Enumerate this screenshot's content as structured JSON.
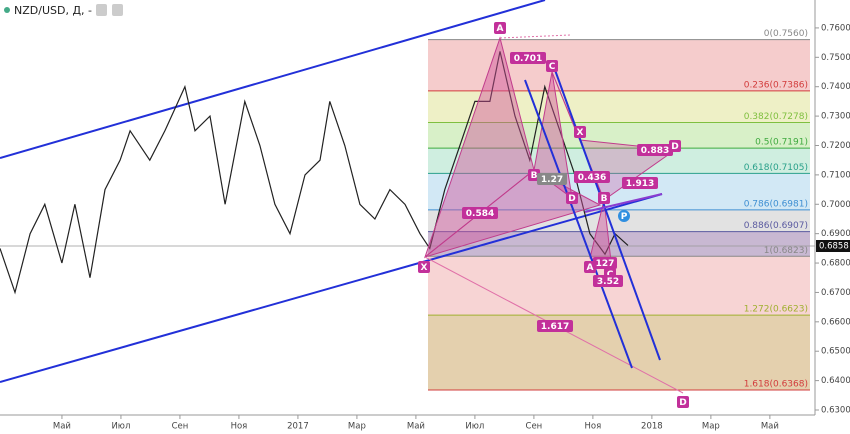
{
  "chart_data": {
    "type": "line",
    "title": "NZD/USD, Д, -",
    "series": [
      {
        "name": "NZD/USD",
        "color": "#222222",
        "x": [
          -2.1,
          -1.59,
          -1.08,
          -0.58,
          0,
          0.44,
          0.95,
          1.46,
          1.97,
          2.31,
          2.98,
          3.49,
          4.17,
          4.51,
          5.02,
          5.53,
          6.2,
          6.71,
          7.22,
          7.73,
          8.24,
          8.75,
          9.08,
          9.59,
          10.1,
          10.61,
          11.12,
          11.63,
          12.14,
          12.47,
          12.98,
          13.49,
          14,
          14.51,
          14.85,
          15.36,
          15.86,
          16.37,
          16.88,
          17.39,
          17.9,
          18.41,
          18.75,
          19.19
        ],
        "values": [
          0.685,
          0.67,
          0.69,
          0.7,
          0.68,
          0.7,
          0.675,
          0.705,
          0.715,
          0.725,
          0.715,
          0.725,
          0.74,
          0.725,
          0.73,
          0.7,
          0.735,
          0.72,
          0.7,
          0.69,
          0.71,
          0.715,
          0.735,
          0.72,
          0.7,
          0.695,
          0.705,
          0.7,
          0.69,
          0.685,
          0.705,
          0.72,
          0.735,
          0.735,
          0.752,
          0.73,
          0.715,
          0.74,
          0.725,
          0.71,
          0.69,
          0.683,
          0.69,
          0.686
        ]
      }
    ],
    "last_price": 0.6858,
    "last_price_label": "0.6858",
    "xlim": [
      -2.1,
      25.53
    ],
    "ylim": [
      0.6283,
      0.7695
    ],
    "yticks": [
      {
        "value": 0.76,
        "label": "0.7600"
      },
      {
        "value": 0.75,
        "label": "0.7500"
      },
      {
        "value": 0.74,
        "label": "0.7400"
      },
      {
        "value": 0.73,
        "label": "0.7300"
      },
      {
        "value": 0.72,
        "label": "0.7200"
      },
      {
        "value": 0.71,
        "label": "0.7100"
      },
      {
        "value": 0.7,
        "label": "0.7000"
      },
      {
        "value": 0.69,
        "label": "0.6900"
      },
      {
        "value": 0.68,
        "label": "0.6800"
      },
      {
        "value": 0.67,
        "label": "0.6700"
      },
      {
        "value": 0.66,
        "label": "0.6600"
      },
      {
        "value": 0.65,
        "label": "0.6500"
      },
      {
        "value": 0.64,
        "label": "0.6400"
      },
      {
        "value": 0.63,
        "label": "0.6300"
      }
    ],
    "xticks": [
      {
        "value": 0,
        "label": "Май"
      },
      {
        "value": 2,
        "label": "Июл"
      },
      {
        "value": 4,
        "label": "Сен"
      },
      {
        "value": 6,
        "label": "Ноя"
      },
      {
        "value": 8,
        "label": "2017"
      },
      {
        "value": 10,
        "label": "Мар"
      },
      {
        "value": 12,
        "label": "Май"
      },
      {
        "value": 14,
        "label": "Июл"
      },
      {
        "value": 16,
        "label": "Сен"
      },
      {
        "value": 18,
        "label": "Ноя"
      },
      {
        "value": 20,
        "label": "2018"
      },
      {
        "value": 22,
        "label": "Мар"
      },
      {
        "value": 24,
        "label": "Май"
      }
    ],
    "fib_levels": [
      {
        "label": "0(0.7560)",
        "price": 0.756,
        "color": "#888888",
        "fill": "#f5cccc"
      },
      {
        "label": "0.236(0.7386)",
        "price": 0.7386,
        "color": "#d23c3c",
        "fill": "#eef0c6"
      },
      {
        "label": "0.382(0.7278)",
        "price": 0.7278,
        "color": "#7fbf3f",
        "fill": "#d8f0c8"
      },
      {
        "label": "0.5(0.7191)",
        "price": 0.7191,
        "color": "#3faa3f",
        "fill": "#cfeee0"
      },
      {
        "label": "0.618(0.7105)",
        "price": 0.7105,
        "color": "#2aa08a",
        "fill": "#d2e8f5"
      },
      {
        "label": "0.786(0.6981)",
        "price": 0.6981,
        "color": "#3f8fd2",
        "fill": "#e2e2e2"
      },
      {
        "label": "0.886(0.6907)",
        "price": 0.6907,
        "color": "#5a5aa0",
        "fill": "#c8b8d2"
      },
      {
        "label": "1(0.6823)",
        "price": 0.6823,
        "color": "#888888",
        "fill": "#f7d4d4"
      },
      {
        "label": "1.272(0.6623)",
        "price": 0.6623,
        "color": "#a0b030",
        "fill": "#e4d0ae"
      },
      {
        "label": "1.618(0.6368)",
        "price": 0.6368,
        "color": "#d23c3c",
        "fill": null
      }
    ],
    "annotations": [
      "A",
      "0.701",
      "C",
      "X",
      "0.883",
      "D",
      "1.913",
      "0.436",
      "B",
      "1.27",
      "D",
      "B",
      "P",
      "0.584",
      "X",
      "A",
      "127",
      "C",
      "3.52",
      "1.617",
      "D"
    ]
  }
}
